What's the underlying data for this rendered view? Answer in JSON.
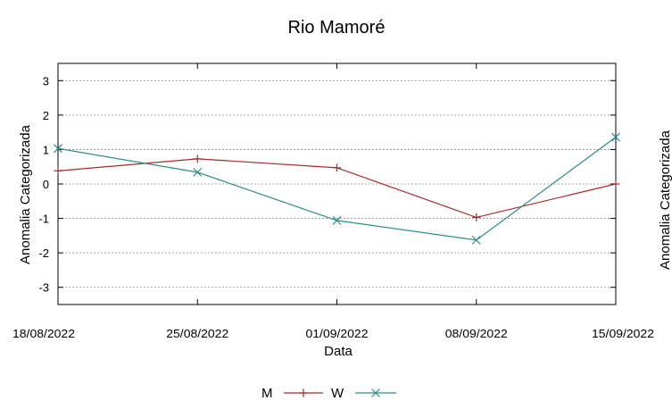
{
  "chart_data": {
    "type": "line",
    "title": "Rio Mamoré",
    "xlabel": "Data",
    "ylabel": "Anomalia Categorizada",
    "right_ylabel": "Anomalia Categorizada",
    "categories": [
      "18/08/2022",
      "25/08/2022",
      "01/09/2022",
      "08/09/2022",
      "15/09/2022"
    ],
    "ylim": [
      -3.5,
      3.5
    ],
    "yticks": [
      3,
      2,
      1,
      0,
      -1,
      -2,
      -3
    ],
    "grid": true,
    "legend": "bottom-center",
    "series": [
      {
        "name": "M",
        "marker": "+",
        "color": "#a52a2a",
        "values": [
          0.38,
          0.73,
          0.47,
          -0.97,
          0.0
        ]
      },
      {
        "name": "W",
        "marker": "x",
        "color": "#2e8b8b",
        "values": [
          1.03,
          0.34,
          -1.06,
          -1.63,
          1.36
        ]
      }
    ]
  }
}
